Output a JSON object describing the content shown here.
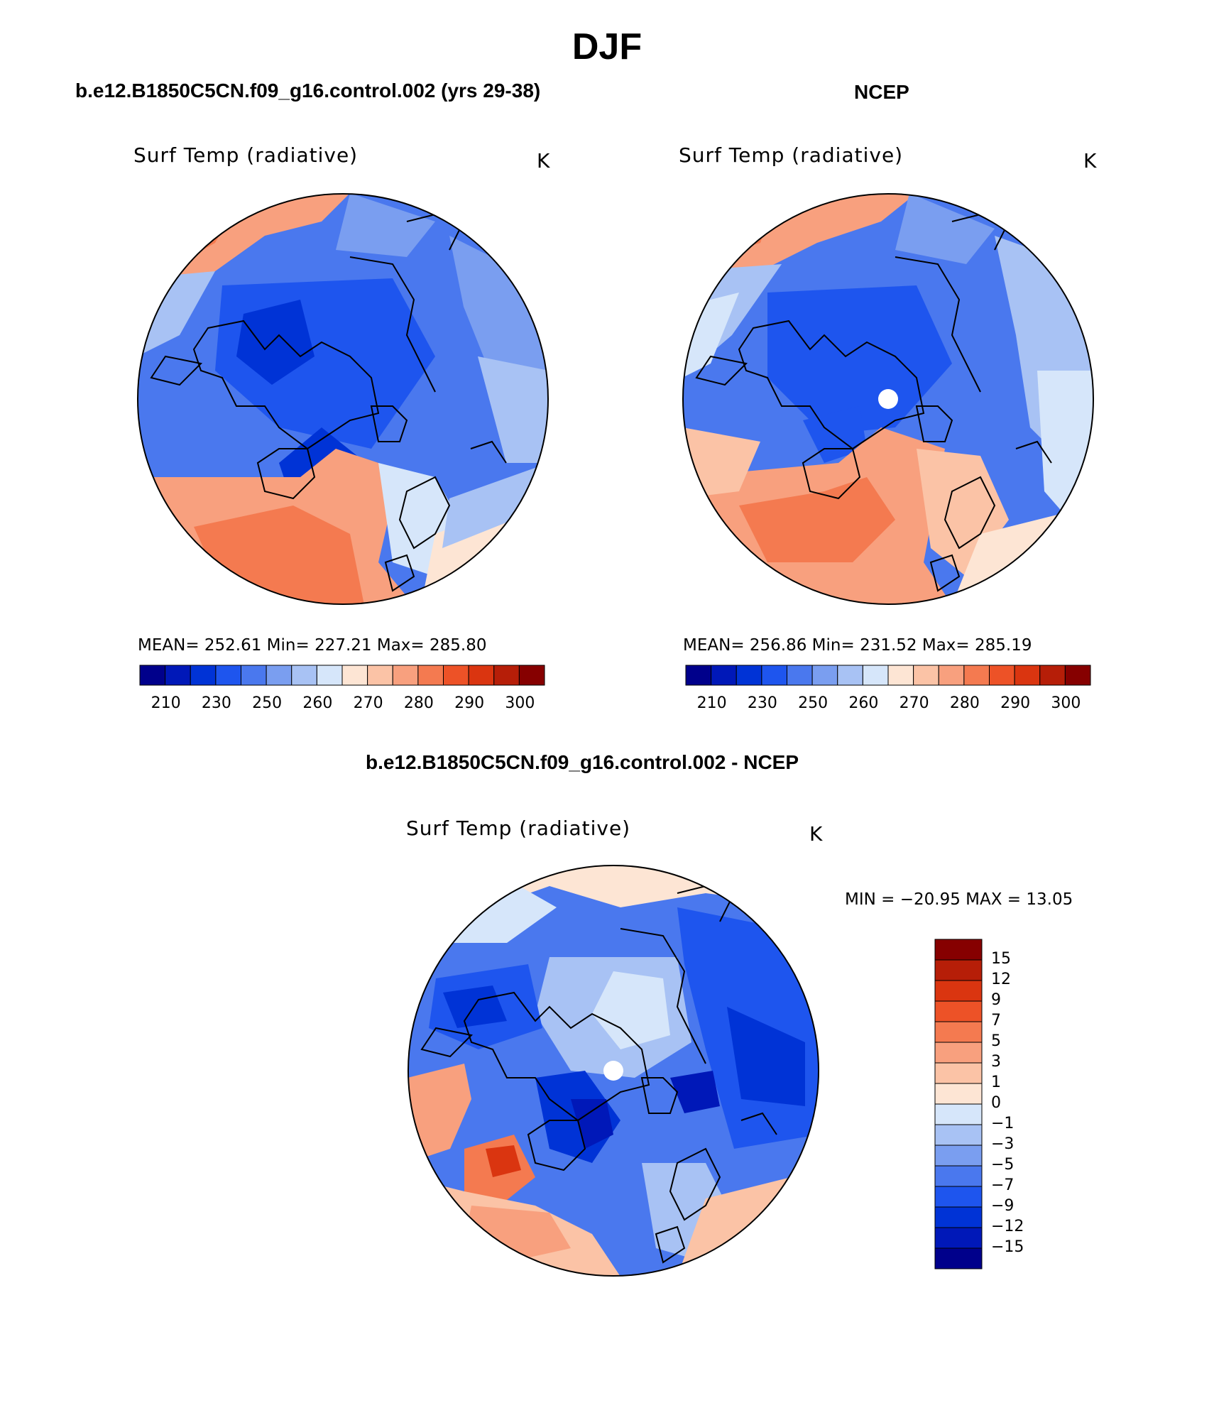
{
  "title": "DJF",
  "panels": [
    {
      "id": "model",
      "case_title": "b.e12.B1850C5CN.f09_g16.control.002 (yrs 29-38)",
      "variable": "Surf Temp (radiative)",
      "units": "K",
      "stats": "MEAN= 252.61   Min= 227.21   Max= 285.80"
    },
    {
      "id": "obs",
      "case_title": "NCEP",
      "variable": "Surf Temp (radiative)",
      "units": "K",
      "stats": "MEAN= 256.86   Min= 231.52   Max= 285.19"
    },
    {
      "id": "diff",
      "case_title": "b.e12.B1850C5CN.f09_g16.control.002 - NCEP",
      "variable": "Surf Temp (radiative)",
      "units": "K",
      "stats": "MIN = −20.95 MAX =   13.05"
    }
  ],
  "abs_colorbar": {
    "colors": [
      "#00008b",
      "#0018b8",
      "#0033d6",
      "#1e55ee",
      "#4a78ee",
      "#7a9ef0",
      "#a8c2f4",
      "#d6e6fa",
      "#fde5d4",
      "#fbc3a6",
      "#f8a07e",
      "#f47a50",
      "#ed5227",
      "#da3510",
      "#b61e08",
      "#860000"
    ],
    "labels": [
      "210",
      "230",
      "250",
      "260",
      "270",
      "280",
      "290",
      "300"
    ]
  },
  "diff_colorbar": {
    "colors": [
      "#860000",
      "#b61e08",
      "#da3510",
      "#ed5227",
      "#f47a50",
      "#f8a07e",
      "#fbc3a6",
      "#fde5d4",
      "#d6e6fa",
      "#a8c2f4",
      "#7a9ef0",
      "#4a78ee",
      "#1e55ee",
      "#0033d6",
      "#0018b8",
      "#00008b"
    ],
    "labels": [
      "15",
      "12",
      "9",
      "7",
      "5",
      "3",
      "1",
      "0",
      "−1",
      "−3",
      "−5",
      "−7",
      "−9",
      "−12",
      "−15"
    ]
  }
}
